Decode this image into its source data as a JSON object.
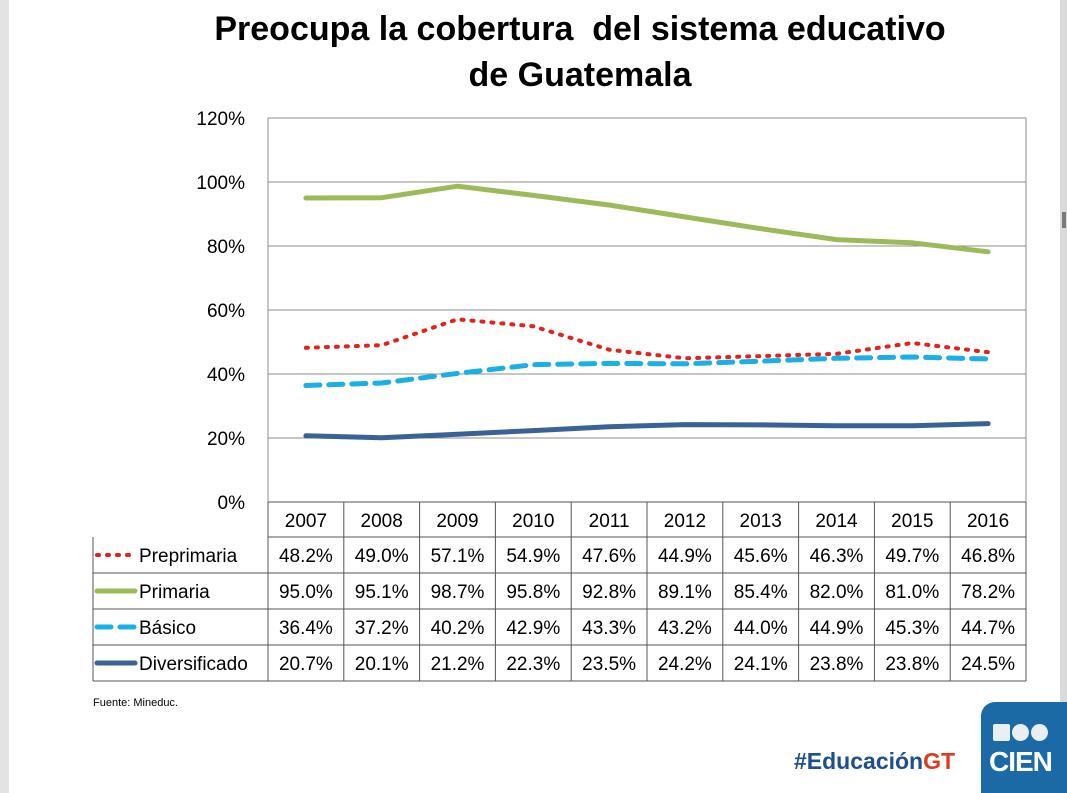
{
  "title_lines": [
    "Preocupa la cobertura  del sistema educativo",
    "de Guatemala"
  ],
  "source": "Fuente: Mineduc.",
  "hashtag": {
    "main": "#Educación",
    "accent": "GT"
  },
  "logo": {
    "text": "CIEN",
    "icon": "cien-dots-icon"
  },
  "colors": {
    "accent_blue": "#1d4e8f",
    "accent_red": "#e03a1e",
    "grid": "#8c8c8c"
  },
  "chart_data": {
    "type": "line",
    "title": "Preocupa la cobertura  del sistema educativo de Guatemala",
    "categories": [
      "2007",
      "2008",
      "2009",
      "2010",
      "2011",
      "2012",
      "2013",
      "2014",
      "2015",
      "2016"
    ],
    "y_ticks": [
      "0%",
      "20%",
      "40%",
      "60%",
      "80%",
      "100%",
      "120%"
    ],
    "ylim": [
      0,
      120
    ],
    "grid": true,
    "legend": "data-table",
    "series": [
      {
        "name": "Preprimaria",
        "color": "#e3221e",
        "style": "dotted",
        "values": [
          48.2,
          49.0,
          57.1,
          54.9,
          47.6,
          44.9,
          45.6,
          46.3,
          49.7,
          46.8
        ],
        "labels": [
          "48.2%",
          "49.0%",
          "57.1%",
          "54.9%",
          "47.6%",
          "44.9%",
          "45.6%",
          "46.3%",
          "49.7%",
          "46.8%"
        ]
      },
      {
        "name": "Primaria",
        "color": "#9bbb59",
        "style": "solid",
        "values": [
          95.0,
          95.1,
          98.7,
          95.8,
          92.8,
          89.1,
          85.4,
          82.0,
          81.0,
          78.2
        ],
        "labels": [
          "95.0%",
          "95.1%",
          "98.7%",
          "95.8%",
          "92.8%",
          "89.1%",
          "85.4%",
          "82.0%",
          "81.0%",
          "78.2%"
        ]
      },
      {
        "name": "Básico",
        "color": "#1aafe6",
        "style": "dashed",
        "values": [
          36.4,
          37.2,
          40.2,
          42.9,
          43.3,
          43.2,
          44.0,
          44.9,
          45.3,
          44.7
        ],
        "labels": [
          "36.4%",
          "37.2%",
          "40.2%",
          "42.9%",
          "43.3%",
          "43.2%",
          "44.0%",
          "44.9%",
          "45.3%",
          "44.7%"
        ]
      },
      {
        "name": "Diversificado",
        "color": "#3a6296",
        "style": "solid",
        "values": [
          20.7,
          20.1,
          21.2,
          22.3,
          23.5,
          24.2,
          24.1,
          23.8,
          23.8,
          24.5
        ],
        "labels": [
          "20.7%",
          "20.1%",
          "21.2%",
          "22.3%",
          "23.5%",
          "24.2%",
          "24.1%",
          "23.8%",
          "23.8%",
          "24.5%"
        ]
      }
    ]
  }
}
